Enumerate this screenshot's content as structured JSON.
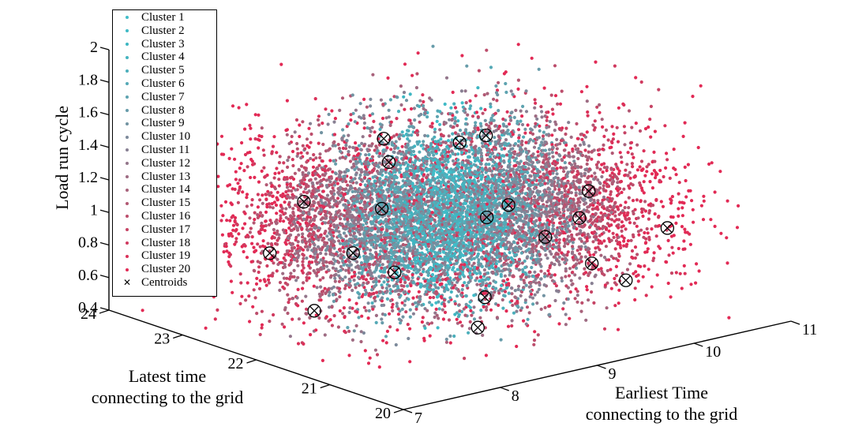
{
  "chart_data": {
    "type": "scatter",
    "title": "",
    "xlabel": "Earliest Time connecting to the grid",
    "xlabel_lines": [
      "Earliest Time",
      "connecting to the grid"
    ],
    "ylabel": "Latest time connecting to the grid",
    "ylabel_lines": [
      "Latest time",
      "connecting to the grid"
    ],
    "zlabel": "Load run cycle",
    "xlim": [
      7,
      11
    ],
    "ylim": [
      20,
      24
    ],
    "zlim": [
      0.4,
      2
    ],
    "xticks": [
      "7",
      "8",
      "9",
      "10",
      "11"
    ],
    "yticks": [
      "20",
      "21",
      "22",
      "23",
      "24"
    ],
    "zticks": [
      "0.4",
      "0.6",
      "0.8",
      "1",
      "1.2",
      "1.4",
      "1.6",
      "1.8",
      "2"
    ],
    "legend_position": "top-left",
    "series": [
      {
        "name": "Cluster 1",
        "color": "#41bdc9"
      },
      {
        "name": "Cluster 2",
        "color": "#3fbac6"
      },
      {
        "name": "Cluster 3",
        "color": "#3db6c2"
      },
      {
        "name": "Cluster 4",
        "color": "#45b4c0"
      },
      {
        "name": "Cluster 5",
        "color": "#4cafbb"
      },
      {
        "name": "Cluster 6",
        "color": "#55a9b6"
      },
      {
        "name": "Cluster 7",
        "color": "#5ea3b0"
      },
      {
        "name": "Cluster 8",
        "color": "#679caa"
      },
      {
        "name": "Cluster 9",
        "color": "#7293a2"
      },
      {
        "name": "Cluster 10",
        "color": "#7d8a9b"
      },
      {
        "name": "Cluster 11",
        "color": "#888093"
      },
      {
        "name": "Cluster 12",
        "color": "#93768b"
      },
      {
        "name": "Cluster 13",
        "color": "#9e6c83"
      },
      {
        "name": "Cluster 14",
        "color": "#a8627b"
      },
      {
        "name": "Cluster 15",
        "color": "#b25873"
      },
      {
        "name": "Cluster 16",
        "color": "#bc4e6c"
      },
      {
        "name": "Cluster 17",
        "color": "#c64465"
      },
      {
        "name": "Cluster 18",
        "color": "#d03a5f"
      },
      {
        "name": "Cluster 19",
        "color": "#da3159"
      },
      {
        "name": "Cluster 20",
        "color": "#e22a55"
      }
    ],
    "centroids_label": "Centroids",
    "centroids": [
      {
        "x": 8.6,
        "y": 22.4,
        "z": 1.05
      },
      {
        "x": 9.3,
        "y": 21.6,
        "z": 1.1
      },
      {
        "x": 9.6,
        "y": 22.3,
        "z": 1.38
      },
      {
        "x": 9.0,
        "y": 22.9,
        "z": 1.35
      },
      {
        "x": 9.9,
        "y": 21.3,
        "z": 1.15
      },
      {
        "x": 9.0,
        "y": 21.5,
        "z": 1.08
      },
      {
        "x": 8.2,
        "y": 21.7,
        "z": 0.82
      },
      {
        "x": 8.6,
        "y": 21.0,
        "z": 0.72
      },
      {
        "x": 8.3,
        "y": 20.7,
        "z": 0.62
      },
      {
        "x": 9.4,
        "y": 20.6,
        "z": 0.88
      },
      {
        "x": 9.6,
        "y": 20.4,
        "z": 0.78
      },
      {
        "x": 8.0,
        "y": 22.0,
        "z": 0.92
      },
      {
        "x": 8.1,
        "y": 22.8,
        "z": 1.1
      },
      {
        "x": 7.9,
        "y": 23.0,
        "z": 0.78
      },
      {
        "x": 7.6,
        "y": 22.0,
        "z": 0.62
      },
      {
        "x": 9.1,
        "y": 22.0,
        "z": 1.45
      },
      {
        "x": 8.9,
        "y": 22.7,
        "z": 1.25
      },
      {
        "x": 9.3,
        "y": 21.1,
        "z": 0.98
      },
      {
        "x": 9.8,
        "y": 20.1,
        "z": 1.12
      },
      {
        "x": 9.5,
        "y": 20.9,
        "z": 1.1
      }
    ],
    "cloud": {
      "x_mean": 8.9,
      "x_sd": 0.9,
      "y_mean": 21.9,
      "y_sd": 0.75,
      "z_mean": 1.05,
      "z_sd": 0.25,
      "approx_points": 9000
    }
  }
}
